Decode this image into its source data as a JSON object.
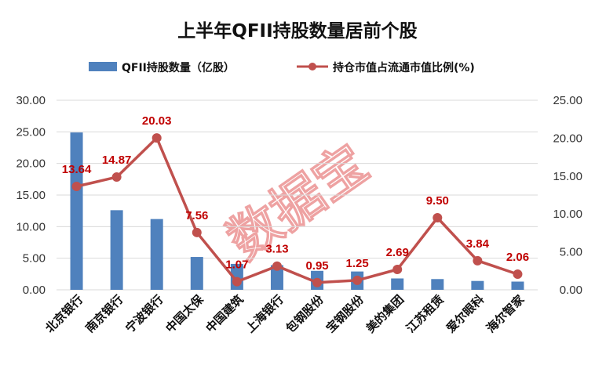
{
  "chart_data": {
    "type": "bar+line",
    "title": "上半年QFII持股数量居前个股",
    "categories": [
      "北京银行",
      "南京银行",
      "宁波银行",
      "中国太保",
      "中国建筑",
      "上海银行",
      "包钢股份",
      "宝钢股份",
      "美的集团",
      "江苏租赁",
      "爱尔眼科",
      "海尔智家"
    ],
    "series": [
      {
        "name": "QFII持股数量（亿股）",
        "type": "bar",
        "axis": "left",
        "color": "#4F81BD",
        "values": [
          24.9,
          12.6,
          11.2,
          5.2,
          4.1,
          3.9,
          3.0,
          2.9,
          1.8,
          1.7,
          1.4,
          1.3
        ]
      },
      {
        "name": "持仓市值占流通市值比例(%)",
        "type": "line",
        "axis": "right",
        "color": "#C0504D",
        "values": [
          13.64,
          14.87,
          20.03,
          7.56,
          1.07,
          3.13,
          0.95,
          1.25,
          2.69,
          9.5,
          3.84,
          2.06
        ],
        "labels": [
          "13.64",
          "14.87",
          "20.03",
          "7.56",
          "1.07",
          "3.13",
          "0.95",
          "1.25",
          "2.69",
          "9.50",
          "3.84",
          "2.06"
        ]
      }
    ],
    "y_left": {
      "min": 0,
      "max": 30,
      "ticks": [
        "0.00",
        "5.00",
        "10.00",
        "15.00",
        "20.00",
        "25.00",
        "30.00"
      ]
    },
    "y_right": {
      "min": 0,
      "max": 25,
      "ticks": [
        "0.00",
        "5.00",
        "10.00",
        "15.00",
        "20.00",
        "25.00"
      ]
    },
    "legend_position": "top",
    "data_label_color": "#C00000",
    "watermark": "数据宝"
  }
}
